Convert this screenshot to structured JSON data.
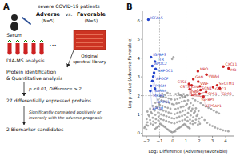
{
  "chart_data": {
    "type": "scatter",
    "x_label": "Log₂ Difference (Adverse/Favorable)",
    "y_label": "-Log p-value (Adverse-Favorable)",
    "xlim": [
      -2.3,
      4.6
    ],
    "ylim": [
      -0.15,
      6.5
    ],
    "xticks": [
      {
        "value": -2,
        "label": "−2"
      },
      {
        "value": -1,
        "label": "−1"
      },
      0,
      1,
      2,
      3,
      4
    ],
    "yticks": [
      0,
      1,
      2,
      3,
      4,
      5,
      6
    ],
    "grid": false,
    "reference_lines": {
      "x": [
        -1.0,
        1.0
      ],
      "y": [
        2.0
      ]
    },
    "series": [
      {
        "type": "scatter",
        "color": "#888888",
        "points": [
          [
            -0.05,
            0.05
          ],
          [
            -0.15,
            0.08
          ],
          [
            0.08,
            0.07
          ],
          [
            -0.25,
            0.12
          ],
          [
            0.18,
            0.1
          ],
          [
            -0.35,
            0.18
          ],
          [
            0.28,
            0.2
          ],
          [
            -0.45,
            0.22
          ],
          [
            0.38,
            0.25
          ],
          [
            -0.55,
            0.3
          ],
          [
            0.48,
            0.28
          ],
          [
            -0.65,
            0.35
          ],
          [
            0.58,
            0.33
          ],
          [
            -0.75,
            0.4
          ],
          [
            0.68,
            0.38
          ],
          [
            -0.85,
            0.45
          ],
          [
            0.78,
            0.43
          ],
          [
            -0.95,
            0.5
          ],
          [
            0.88,
            0.48
          ],
          [
            -1.05,
            0.38
          ],
          [
            0.98,
            0.42
          ],
          [
            -1.15,
            0.32
          ],
          [
            1.08,
            0.36
          ],
          [
            -1.25,
            0.28
          ],
          [
            1.18,
            0.3
          ],
          [
            -1.35,
            0.22
          ],
          [
            1.28,
            0.25
          ],
          [
            -0.1,
            0.55
          ],
          [
            0.12,
            0.52
          ],
          [
            -0.3,
            0.6
          ],
          [
            0.32,
            0.58
          ],
          [
            -0.5,
            0.65
          ],
          [
            0.52,
            0.62
          ],
          [
            -0.7,
            0.7
          ],
          [
            0.72,
            0.68
          ],
          [
            -0.9,
            0.75
          ],
          [
            0.92,
            0.72
          ],
          [
            -1.1,
            0.68
          ],
          [
            1.12,
            0.65
          ],
          [
            -1.3,
            0.55
          ],
          [
            1.32,
            0.52
          ],
          [
            -1.5,
            0.45
          ],
          [
            1.52,
            0.48
          ],
          [
            -0.08,
            0.8
          ],
          [
            0.1,
            0.78
          ],
          [
            -0.28,
            0.85
          ],
          [
            0.3,
            0.82
          ],
          [
            -0.48,
            0.9
          ],
          [
            0.5,
            0.88
          ],
          [
            -0.68,
            0.95
          ],
          [
            0.7,
            0.92
          ],
          [
            -0.88,
            1.0
          ],
          [
            0.9,
            0.98
          ],
          [
            -1.08,
            0.88
          ],
          [
            1.1,
            0.85
          ],
          [
            -1.28,
            0.75
          ],
          [
            1.3,
            0.72
          ],
          [
            -1.48,
            0.62
          ],
          [
            1.5,
            0.65
          ],
          [
            -1.68,
            0.5
          ],
          [
            1.7,
            0.55
          ],
          [
            -1.88,
            0.4
          ],
          [
            1.9,
            0.45
          ],
          [
            -0.12,
            1.05
          ],
          [
            0.15,
            1.02
          ],
          [
            -0.32,
            1.1
          ],
          [
            0.35,
            1.08
          ],
          [
            -0.52,
            1.15
          ],
          [
            0.55,
            1.12
          ],
          [
            -0.72,
            1.2
          ],
          [
            0.75,
            1.18
          ],
          [
            -0.92,
            1.25
          ],
          [
            0.95,
            1.22
          ],
          [
            -1.12,
            1.1
          ],
          [
            1.15,
            1.08
          ],
          [
            -1.32,
            0.98
          ],
          [
            1.35,
            0.95
          ],
          [
            -1.52,
            0.82
          ],
          [
            1.55,
            0.85
          ],
          [
            -1.72,
            0.7
          ],
          [
            1.75,
            0.72
          ],
          [
            -1.92,
            0.58
          ],
          [
            1.95,
            0.62
          ],
          [
            -2.0,
            0.45
          ],
          [
            2.05,
            0.5
          ],
          [
            -0.18,
            1.3
          ],
          [
            0.2,
            1.28
          ],
          [
            -0.38,
            1.35
          ],
          [
            0.4,
            1.32
          ],
          [
            -0.58,
            1.4
          ],
          [
            0.6,
            1.38
          ],
          [
            -0.78,
            1.45
          ],
          [
            0.8,
            1.42
          ],
          [
            -0.98,
            1.5
          ],
          [
            1.0,
            1.48
          ],
          [
            -1.18,
            1.35
          ],
          [
            1.2,
            1.32
          ],
          [
            -1.38,
            1.2
          ],
          [
            1.4,
            1.18
          ],
          [
            -1.58,
            1.05
          ],
          [
            1.6,
            1.08
          ],
          [
            -1.78,
            0.9
          ],
          [
            1.8,
            0.92
          ],
          [
            -1.98,
            0.75
          ],
          [
            2.0,
            0.78
          ],
          [
            -0.05,
            1.55
          ],
          [
            0.08,
            1.52
          ],
          [
            -0.25,
            1.6
          ],
          [
            0.28,
            1.58
          ],
          [
            -0.45,
            1.65
          ],
          [
            0.48,
            1.62
          ],
          [
            -0.65,
            1.7
          ],
          [
            0.68,
            1.68
          ],
          [
            -0.85,
            1.75
          ],
          [
            0.88,
            1.72
          ],
          [
            -1.05,
            1.58
          ],
          [
            1.08,
            1.55
          ],
          [
            -1.25,
            1.42
          ],
          [
            1.28,
            1.4
          ],
          [
            -1.45,
            1.28
          ],
          [
            1.48,
            1.3
          ],
          [
            -1.65,
            1.12
          ],
          [
            1.68,
            1.15
          ],
          [
            -1.85,
            0.98
          ],
          [
            1.88,
            1.0
          ],
          [
            -0.12,
            1.8
          ],
          [
            0.15,
            1.78
          ],
          [
            -0.32,
            1.85
          ],
          [
            0.35,
            1.82
          ],
          [
            -0.52,
            1.9
          ],
          [
            0.55,
            1.88
          ],
          [
            -0.72,
            1.92
          ],
          [
            0.75,
            1.9
          ],
          [
            -0.92,
            1.95
          ],
          [
            0.95,
            1.92
          ],
          [
            -1.12,
            1.78
          ],
          [
            1.15,
            1.75
          ],
          [
            -1.32,
            1.62
          ],
          [
            1.35,
            1.6
          ],
          [
            -1.52,
            1.45
          ],
          [
            1.55,
            1.48
          ],
          [
            -1.72,
            1.3
          ],
          [
            1.75,
            1.32
          ],
          [
            -1.92,
            1.15
          ],
          [
            1.95,
            1.18
          ],
          [
            -0.2,
            2.1
          ],
          [
            0.22,
            2.08
          ],
          [
            -0.4,
            2.15
          ],
          [
            0.42,
            2.12
          ],
          [
            -0.6,
            2.05
          ],
          [
            0.62,
            2.02
          ],
          [
            -0.8,
            2.1
          ],
          [
            0.82,
            2.08
          ],
          [
            0.05,
            4.05
          ],
          [
            -0.05,
            3.95
          ],
          [
            2.2,
            0.85
          ],
          [
            2.4,
            0.7
          ],
          [
            2.6,
            0.55
          ],
          [
            2.8,
            0.45
          ],
          [
            3.0,
            0.38
          ],
          [
            3.2,
            0.3
          ],
          [
            3.4,
            0.25
          ],
          [
            3.6,
            0.2
          ],
          [
            3.8,
            0.15
          ],
          [
            4.0,
            0.12
          ],
          [
            4.2,
            0.1
          ],
          [
            0.5,
            2.05
          ],
          [
            0.7,
            1.98
          ],
          [
            0.9,
            1.95
          ],
          [
            1.1,
            2.02
          ],
          [
            1.5,
            1.85
          ],
          [
            1.7,
            1.75
          ],
          [
            1.9,
            1.68
          ],
          [
            2.1,
            1.6
          ],
          [
            2.3,
            1.5
          ],
          [
            2.5,
            1.42
          ],
          [
            2.7,
            1.35
          ],
          [
            2.9,
            1.28
          ],
          [
            3.1,
            1.2
          ],
          [
            3.3,
            1.12
          ],
          [
            3.5,
            1.05
          ],
          [
            -2.1,
            0.35
          ],
          [
            -2.15,
            0.28
          ],
          [
            -2.0,
            0.2
          ]
        ]
      },
      {
        "type": "line",
        "color": "#cc2222",
        "points": [
          [
            1.28,
            2.0
          ],
          [
            1.28,
            2.35
          ]
        ]
      },
      {
        "type": "line",
        "color": "#cc2222",
        "points": [
          [
            1.42,
            2.0
          ],
          [
            1.22,
            2.62
          ]
        ]
      },
      {
        "type": "line",
        "color": "#cc2222",
        "points": [
          [
            1.42,
            2.0
          ],
          [
            1.42,
            2.55
          ]
        ]
      },
      {
        "type": "line",
        "color": "#cc2222",
        "points": [
          [
            1.42,
            2.0
          ],
          [
            2.05,
            2.5
          ]
        ]
      },
      {
        "type": "line",
        "color": "#cc2222",
        "points": [
          [
            1.42,
            2.0
          ],
          [
            2.1,
            2.3
          ]
        ]
      },
      {
        "type": "line",
        "color": "#cc2222",
        "points": [
          [
            1.42,
            2.0
          ],
          [
            2.02,
            2.1
          ]
        ]
      },
      {
        "type": "line",
        "color": "#cc2222",
        "points": [
          [
            1.42,
            2.0
          ],
          [
            2.32,
            1.95
          ]
        ]
      },
      {
        "type": "line",
        "color": "#cc2222",
        "points": [
          [
            1.42,
            2.0
          ],
          [
            2.52,
            2.2
          ]
        ]
      },
      {
        "type": "scatter",
        "color": "#2244cc",
        "points": [
          [
            -1.85,
            6.05
          ],
          [
            -1.65,
            4.05
          ],
          [
            -1.35,
            3.82
          ],
          [
            -1.55,
            3.58
          ],
          [
            -1.3,
            3.42
          ],
          [
            -1.42,
            3.22
          ],
          [
            -1.48,
            3.02
          ],
          [
            -1.55,
            2.78
          ],
          [
            -1.65,
            2.52
          ],
          [
            -1.35,
            2.38
          ],
          [
            -1.7,
            2.25
          ]
        ],
        "labels": [
          "IGFALS",
          "IGFBP3",
          "TTR",
          "APOC2",
          "AHPOC1",
          "APOCF",
          "PRGM",
          "SARA4",
          "MRIP1",
          "APOC1",
          "APOM"
        ]
      },
      {
        "type": "scatter",
        "color": "#cc2222",
        "points": [
          [
            1.9,
            3.3
          ],
          [
            2.55,
            3.12
          ],
          [
            1.55,
            2.88
          ],
          [
            1.92,
            2.75
          ],
          [
            1.22,
            2.62
          ],
          [
            1.42,
            2.55
          ],
          [
            2.05,
            2.5
          ],
          [
            3.35,
            2.55
          ],
          [
            3.05,
            2.45
          ],
          [
            3.55,
            2.4
          ],
          [
            1.28,
            2.35
          ],
          [
            2.1,
            2.3
          ],
          [
            2.52,
            2.2
          ],
          [
            2.02,
            2.1
          ],
          [
            2.32,
            1.95
          ],
          [
            3.82,
            3.55
          ],
          [
            4.22,
            3.45
          ]
        ],
        "labels": [
          "MPO",
          "VWA4",
          "GAN",
          "VWF",
          "CTSE",
          "CST3",
          "SCN1",
          "SECTM1",
          "GIPC2",
          "CD93",
          "CIN",
          "SIM",
          "SPS1",
          "IGFBP5",
          "ATPSAP1",
          "CXCL1",
          "MB"
        ]
      }
    ],
    "annotations": [
      "A",
      "severe COVID-19 patients",
      "Adverse",
      "vs.",
      "Favorable",
      "(N=5)",
      "(N=5)",
      "Serum",
      "···",
      "Original",
      "spectral library",
      "DIA-MS analysis",
      "Protein identification",
      "& Quantitative analysis",
      "p <0.01, Difference > 2",
      "27 differentially expressed proteins",
      "Significantly correlated positively or",
      "inversely with the adverse prognosis",
      "2 Biomarker candidates",
      "B"
    ]
  }
}
